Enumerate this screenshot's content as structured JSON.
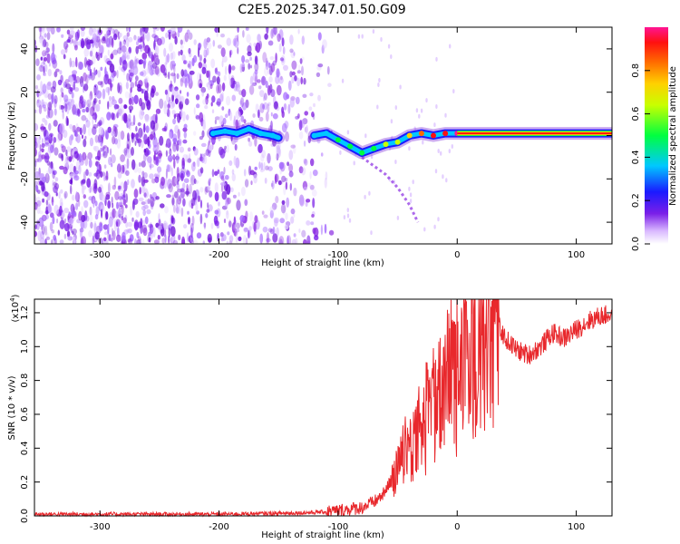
{
  "chart_data": [
    {
      "type": "heatmap",
      "title": "C2E5.2025.347.01.50.G09",
      "xlabel": "Height of straight line (km)",
      "ylabel": "Frequency (Hz)",
      "xlim": [
        -355,
        130
      ],
      "ylim": [
        -50,
        50
      ],
      "xticks": [
        "-300",
        "-200",
        "-100",
        "0",
        "100"
      ],
      "xtick_values": [
        -300,
        -200,
        -100,
        0,
        100
      ],
      "yticks": [
        "-40",
        "-20",
        "0",
        "20",
        "40"
      ],
      "ytick_values": [
        -40,
        -20,
        0,
        20,
        40
      ],
      "colorbar": {
        "label": "Normalized spectral amplitude",
        "range": [
          0,
          1
        ],
        "ticks": [
          "0.0",
          "0.2",
          "0.4",
          "0.6",
          "0.8"
        ],
        "tick_values": [
          0,
          0.2,
          0.4,
          0.6,
          0.8
        ]
      },
      "ridge": {
        "x": [
          -205,
          -195,
          -185,
          -175,
          -165,
          -155,
          -150,
          -120,
          -110,
          -100,
          -90,
          -80,
          -70,
          -60,
          -50,
          -40,
          -30,
          -20,
          -10,
          0,
          130
        ],
        "freq": [
          1,
          2,
          1,
          3,
          1,
          0,
          -1,
          0,
          1,
          -2,
          -5,
          -8,
          -6,
          -4,
          -3,
          0,
          1,
          0,
          1,
          1,
          1
        ],
        "amplitude": [
          0.25,
          0.35,
          0.3,
          0.35,
          0.3,
          0.25,
          0.2,
          0.25,
          0.35,
          0.4,
          0.45,
          0.5,
          0.5,
          0.55,
          0.6,
          0.7,
          0.8,
          0.85,
          0.9,
          0.95,
          0.95
        ]
      },
      "branch": {
        "x": [
          -80,
          -70,
          -60,
          -50,
          -40,
          -33
        ],
        "freq": [
          -10,
          -14,
          -18,
          -24,
          -32,
          -40
        ]
      }
    },
    {
      "type": "line",
      "title": "",
      "xlabel": "Height of straight line (km)",
      "ylabel": "SNR (10 * v/v)",
      "yscale_label": "(x10",
      "yscale_exp": "4",
      "xlim": [
        -355,
        130
      ],
      "ylim": [
        0,
        1.28
      ],
      "xticks": [
        "-300",
        "-200",
        "-100",
        "0",
        "100"
      ],
      "xtick_values": [
        -300,
        -200,
        -100,
        0,
        100
      ],
      "yticks": [
        "0.0",
        "0.2",
        "0.4",
        "0.6",
        "0.8",
        "1.0",
        "1.2"
      ],
      "ytick_values": [
        0,
        0.2,
        0.4,
        0.6,
        0.8,
        1.0,
        1.2
      ],
      "series": [
        {
          "name": "SNR",
          "color": "#e8282c",
          "x": [
            -355,
            -300,
            -250,
            -200,
            -150,
            -120,
            -110,
            -100,
            -90,
            -80,
            -70,
            -60,
            -50,
            -40,
            -30,
            -20,
            -10,
            0,
            10,
            20,
            30,
            35,
            40,
            50,
            60,
            70,
            80,
            90,
            100,
            110,
            120,
            130
          ],
          "values": [
            0.01,
            0.01,
            0.01,
            0.01,
            0.015,
            0.02,
            0.025,
            0.03,
            0.04,
            0.05,
            0.08,
            0.14,
            0.25,
            0.38,
            0.48,
            0.6,
            0.7,
            0.78,
            0.88,
            1.0,
            1.1,
            1.12,
            1.05,
            0.98,
            0.95,
            1.0,
            1.08,
            1.05,
            1.1,
            1.15,
            1.18,
            1.19
          ]
        }
      ]
    }
  ]
}
